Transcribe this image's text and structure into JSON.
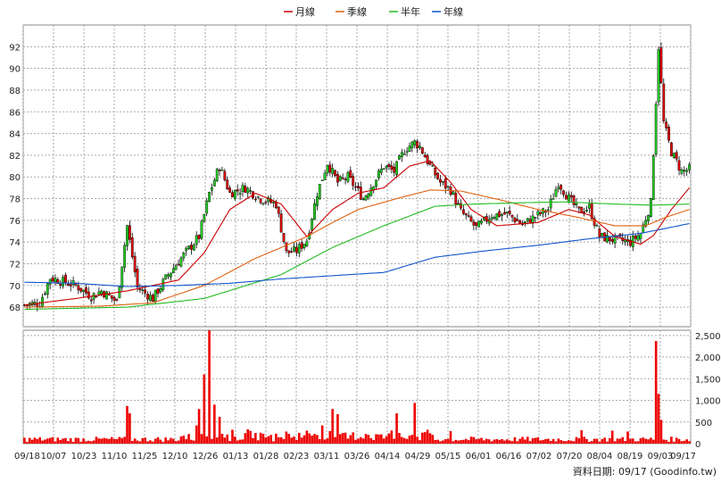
{
  "chart_data": [
    {
      "type": "candlestick",
      "panel": "price",
      "legend": [
        {
          "name": "月線",
          "color": "#cc0000"
        },
        {
          "name": "季線",
          "color": "#e06010"
        },
        {
          "name": "半年",
          "color": "#22bb22"
        },
        {
          "name": "年線",
          "color": "#1155cc"
        }
      ],
      "y_ticks": [
        68,
        70,
        72,
        74,
        76,
        78,
        80,
        82,
        84,
        86,
        88,
        90,
        92
      ],
      "ylim": [
        66.2,
        94.0
      ],
      "x_ticks": [
        "09/18",
        "10/07",
        "10/23",
        "11/10",
        "11/25",
        "12/10",
        "12/26",
        "01/13",
        "01/28",
        "02/23",
        "03/11",
        "03/26",
        "04/14",
        "04/29",
        "05/15",
        "06/01",
        "06/16",
        "07/02",
        "07/20",
        "08/04",
        "08/19",
        "09/03",
        "09/17"
      ],
      "up_color": "#22cc22",
      "down_color": "#dd0000",
      "close_anchors": [
        [
          0,
          68.2
        ],
        [
          6,
          68.4
        ],
        [
          10,
          70.7
        ],
        [
          20,
          70.0
        ],
        [
          26,
          69.0
        ],
        [
          30,
          69.5
        ],
        [
          36,
          68.5
        ],
        [
          40,
          75.5
        ],
        [
          44,
          69.8
        ],
        [
          50,
          68.8
        ],
        [
          56,
          71.0
        ],
        [
          62,
          72.8
        ],
        [
          68,
          74.5
        ],
        [
          72,
          78.5
        ],
        [
          76,
          81.0
        ],
        [
          80,
          78.5
        ],
        [
          86,
          79.0
        ],
        [
          92,
          78.0
        ],
        [
          98,
          77.5
        ],
        [
          102,
          73.0
        ],
        [
          106,
          73.2
        ],
        [
          110,
          74.2
        ],
        [
          114,
          78.5
        ],
        [
          118,
          81.3
        ],
        [
          122,
          79.5
        ],
        [
          126,
          80.0
        ],
        [
          132,
          78.0
        ],
        [
          136,
          79.5
        ],
        [
          140,
          81.0
        ],
        [
          144,
          80.5
        ],
        [
          148,
          82.5
        ],
        [
          152,
          83.2
        ],
        [
          154,
          82.8
        ],
        [
          158,
          81.0
        ],
        [
          162,
          79.5
        ],
        [
          166,
          78.8
        ],
        [
          170,
          76.8
        ],
        [
          176,
          75.3
        ],
        [
          182,
          76.5
        ],
        [
          188,
          76.6
        ],
        [
          194,
          75.6
        ],
        [
          200,
          76.5
        ],
        [
          204,
          77.0
        ],
        [
          208,
          79.5
        ],
        [
          212,
          78.0
        ],
        [
          216,
          76.8
        ],
        [
          220,
          77.2
        ],
        [
          224,
          74.5
        ],
        [
          230,
          74.2
        ],
        [
          236,
          74.0
        ],
        [
          240,
          74.8
        ],
        [
          244,
          77.6
        ],
        [
          246,
          87.0
        ],
        [
          247,
          92.0
        ],
        [
          249,
          85.0
        ],
        [
          252,
          82.3
        ],
        [
          256,
          80.5
        ],
        [
          259,
          80.7
        ]
      ],
      "ma": [
        {
          "name": "月線",
          "anchors": [
            [
              0,
              68.2
            ],
            [
              20,
              68.8
            ],
            [
              40,
              69.5
            ],
            [
              60,
              70.5
            ],
            [
              70,
              73.0
            ],
            [
              80,
              77.0
            ],
            [
              90,
              78.5
            ],
            [
              100,
              77.5
            ],
            [
              110,
              74.5
            ],
            [
              120,
              77.0
            ],
            [
              130,
              78.5
            ],
            [
              140,
              79.0
            ],
            [
              150,
              81.0
            ],
            [
              158,
              81.5
            ],
            [
              166,
              79.5
            ],
            [
              174,
              77.0
            ],
            [
              184,
              75.5
            ],
            [
              200,
              75.8
            ],
            [
              212,
              77.0
            ],
            [
              220,
              76.5
            ],
            [
              230,
              74.5
            ],
            [
              240,
              73.8
            ],
            [
              245,
              74.6
            ],
            [
              252,
              77.0
            ],
            [
              259,
              79.0
            ]
          ]
        },
        {
          "name": "季線",
          "anchors": [
            [
              0,
              68.0
            ],
            [
              30,
              68.1
            ],
            [
              50,
              68.4
            ],
            [
              70,
              70.0
            ],
            [
              90,
              72.5
            ],
            [
              110,
              74.5
            ],
            [
              120,
              75.8
            ],
            [
              130,
              77.0
            ],
            [
              145,
              78.0
            ],
            [
              158,
              78.8
            ],
            [
              170,
              78.7
            ],
            [
              185,
              77.9
            ],
            [
              200,
              77.0
            ],
            [
              215,
              76.3
            ],
            [
              230,
              75.5
            ],
            [
              242,
              75.5
            ],
            [
              250,
              76.3
            ],
            [
              259,
              77.0
            ]
          ]
        },
        {
          "name": "半年",
          "anchors": [
            [
              0,
              67.8
            ],
            [
              40,
              68.0
            ],
            [
              70,
              68.8
            ],
            [
              100,
              71.0
            ],
            [
              120,
              73.5
            ],
            [
              140,
              75.5
            ],
            [
              160,
              77.3
            ],
            [
              175,
              77.5
            ],
            [
              190,
              77.6
            ],
            [
              210,
              77.7
            ],
            [
              230,
              77.5
            ],
            [
              245,
              77.4
            ],
            [
              259,
              77.5
            ]
          ]
        },
        {
          "name": "年線",
          "anchors": [
            [
              0,
              70.3
            ],
            [
              20,
              70.2
            ],
            [
              40,
              69.9
            ],
            [
              60,
              70.0
            ],
            [
              80,
              70.2
            ],
            [
              100,
              70.6
            ],
            [
              120,
              70.9
            ],
            [
              140,
              71.2
            ],
            [
              160,
              72.6
            ],
            [
              180,
              73.2
            ],
            [
              200,
              73.7
            ],
            [
              220,
              74.3
            ],
            [
              240,
              74.8
            ],
            [
              259,
              75.7
            ]
          ]
        }
      ]
    },
    {
      "type": "bar",
      "panel": "volume",
      "y_ticks": [
        0,
        500,
        1000,
        1500,
        2000,
        2500
      ],
      "y_tick_labels": [
        "0",
        "500",
        "1,000",
        "1,500",
        "2,000",
        "2,500"
      ],
      "ylim": [
        0,
        2620
      ],
      "color": "#ee0000",
      "spikes": [
        [
          40,
          870
        ],
        [
          41,
          700
        ],
        [
          67,
          420
        ],
        [
          68,
          800
        ],
        [
          70,
          1600
        ],
        [
          72,
          2620
        ],
        [
          74,
          900
        ],
        [
          76,
          620
        ],
        [
          110,
          300
        ],
        [
          116,
          420
        ],
        [
          120,
          800
        ],
        [
          122,
          680
        ],
        [
          145,
          700
        ],
        [
          152,
          940
        ],
        [
          157,
          320
        ],
        [
          166,
          290
        ],
        [
          217,
          310
        ],
        [
          229,
          300
        ],
        [
          235,
          280
        ],
        [
          246,
          2370
        ],
        [
          247,
          1150
        ],
        [
          248,
          550
        ]
      ]
    }
  ],
  "footer": {
    "credit": "資料日期: 09/17 (Goodinfo.tw)"
  }
}
